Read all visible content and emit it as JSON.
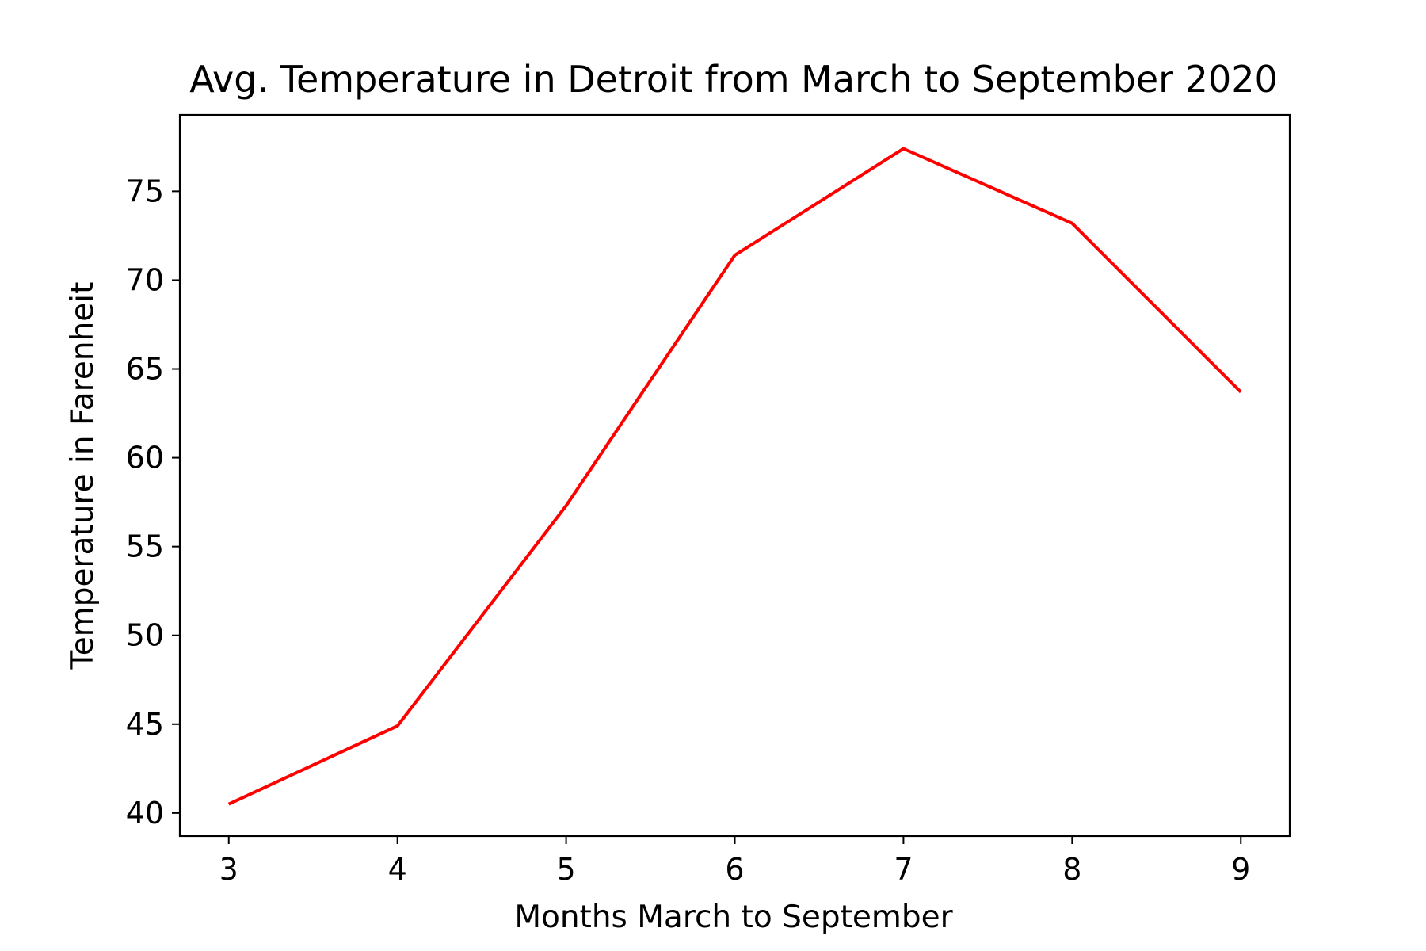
{
  "chart_data": {
    "type": "line",
    "title": "Avg. Temperature in Detroit from March to September 2020",
    "xlabel": "Months March to September",
    "ylabel": "Temperature in Farenheit",
    "x": [
      3,
      4,
      5,
      6,
      7,
      8,
      9
    ],
    "xlim": [
      2.71,
      9.29
    ],
    "ylim": [
      38.7,
      79.3
    ],
    "xticks": [
      3,
      4,
      5,
      6,
      7,
      8,
      9
    ],
    "yticks": [
      40,
      45,
      50,
      55,
      60,
      65,
      70,
      75
    ],
    "grid": false,
    "series": [
      {
        "color": "#ff0000",
        "values": [
          40.5,
          44.9,
          57.3,
          71.4,
          77.4,
          73.2,
          63.7
        ]
      }
    ]
  }
}
